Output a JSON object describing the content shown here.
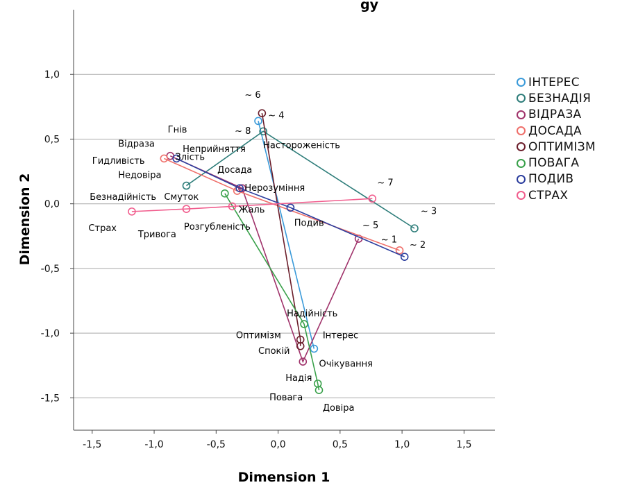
{
  "chart_data": {
    "type": "line",
    "title_fragment": "gy",
    "xlabel": "Dimension 1",
    "ylabel": "Dimension 2",
    "xlim": [
      -1.65,
      1.75
    ],
    "ylim": [
      -1.75,
      1.5
    ],
    "x_ticks": [
      {
        "v": -1.5,
        "label": "-1,5"
      },
      {
        "v": -1.0,
        "label": "-1,0"
      },
      {
        "v": -0.5,
        "label": "-0,5"
      },
      {
        "v": 0.0,
        "label": "0,0"
      },
      {
        "v": 0.5,
        "label": "0,5"
      },
      {
        "v": 1.0,
        "label": "1,0"
      },
      {
        "v": 1.5,
        "label": "1,5"
      }
    ],
    "y_ticks": [
      {
        "v": 1.0,
        "label": "1,0"
      },
      {
        "v": 0.5,
        "label": "0,5"
      },
      {
        "v": 0.0,
        "label": "0,0"
      },
      {
        "v": -0.5,
        "label": "-0,5"
      },
      {
        "v": -1.0,
        "label": "-1,0"
      },
      {
        "v": -1.5,
        "label": "-1,5"
      }
    ],
    "grid": "horizontal",
    "legend_position": "right",
    "series": [
      {
        "name": "ІНТЕРЕС",
        "color": "#3a9ad9",
        "points": [
          [
            -0.16,
            0.64
          ],
          [
            0.29,
            -1.12
          ]
        ]
      },
      {
        "name": "БЕЗНАДІЯ",
        "color": "#2e7d7a",
        "points": [
          [
            -0.74,
            0.14
          ],
          [
            -0.12,
            0.56
          ],
          [
            1.1,
            -0.19
          ]
        ]
      },
      {
        "name": "ВІДРАЗА",
        "color": "#a0336b",
        "points": [
          [
            -0.87,
            0.37
          ],
          [
            -0.29,
            0.12
          ],
          [
            0.2,
            -1.22
          ],
          [
            0.65,
            -0.27
          ]
        ]
      },
      {
        "name": "ДОСАДА",
        "color": "#ef6f6a",
        "points": [
          [
            -0.92,
            0.35
          ],
          [
            -0.33,
            0.1
          ],
          [
            0.98,
            -0.36
          ]
        ]
      },
      {
        "name": "ОПТИМІЗМ",
        "color": "#6b1e2b",
        "points": [
          [
            -0.13,
            0.7
          ],
          [
            0.18,
            -1.05
          ],
          [
            0.18,
            -1.1
          ]
        ]
      },
      {
        "name": "ПОВАГА",
        "color": "#3aa14b",
        "points": [
          [
            -0.43,
            0.08
          ],
          [
            0.21,
            -0.93
          ],
          [
            0.32,
            -1.39
          ],
          [
            0.33,
            -1.44
          ]
        ]
      },
      {
        "name": "ПОДИВ",
        "color": "#2c3e9e",
        "points": [
          [
            -0.82,
            0.35
          ],
          [
            -0.31,
            0.12
          ],
          [
            0.1,
            -0.03
          ],
          [
            1.02,
            -0.41
          ]
        ]
      },
      {
        "name": "СТРАХ",
        "color": "#f15e8e",
        "points": [
          [
            -1.18,
            -0.06
          ],
          [
            -0.74,
            -0.04
          ],
          [
            -0.37,
            -0.02
          ],
          [
            0.76,
            0.04
          ]
        ]
      }
    ],
    "point_labels": [
      {
        "text": "~ 6",
        "x": -0.27,
        "y": 0.82,
        "anchor": "start"
      },
      {
        "text": "~ 4",
        "x": -0.08,
        "y": 0.66,
        "anchor": "start"
      },
      {
        "text": "~ 8",
        "x": -0.35,
        "y": 0.54,
        "anchor": "start"
      },
      {
        "text": "Гнів",
        "x": -0.89,
        "y": 0.55,
        "anchor": "start"
      },
      {
        "text": "Відраза",
        "x": -1.29,
        "y": 0.44,
        "anchor": "start"
      },
      {
        "text": "Неприйняття",
        "x": -0.77,
        "y": 0.4,
        "anchor": "start"
      },
      {
        "text": "Настороженість",
        "x": -0.12,
        "y": 0.43,
        "anchor": "start"
      },
      {
        "text": "Гидливість",
        "x": -1.5,
        "y": 0.31,
        "anchor": "start"
      },
      {
        "text": "Злість",
        "x": -0.83,
        "y": 0.34,
        "anchor": "start"
      },
      {
        "text": "Недовіра",
        "x": -1.29,
        "y": 0.2,
        "anchor": "start"
      },
      {
        "text": "Досада",
        "x": -0.49,
        "y": 0.24,
        "anchor": "start"
      },
      {
        "text": "Безнадійність",
        "x": -1.52,
        "y": 0.03,
        "anchor": "start"
      },
      {
        "text": "Смуток",
        "x": -0.92,
        "y": 0.03,
        "anchor": "start"
      },
      {
        "text": "Нерозуміння",
        "x": -0.27,
        "y": 0.1,
        "anchor": "start"
      },
      {
        "text": "~ 7",
        "x": 0.8,
        "y": 0.14,
        "anchor": "start"
      },
      {
        "text": "Жаль",
        "x": -0.32,
        "y": -0.07,
        "anchor": "start"
      },
      {
        "text": "~ 3",
        "x": 1.15,
        "y": -0.08,
        "anchor": "start"
      },
      {
        "text": "Страх",
        "x": -1.53,
        "y": -0.21,
        "anchor": "start"
      },
      {
        "text": "Тривога",
        "x": -1.13,
        "y": -0.26,
        "anchor": "start"
      },
      {
        "text": "Розгубленість",
        "x": -0.76,
        "y": -0.2,
        "anchor": "start"
      },
      {
        "text": "Подив",
        "x": 0.13,
        "y": -0.17,
        "anchor": "start"
      },
      {
        "text": "~ 5",
        "x": 0.68,
        "y": -0.19,
        "anchor": "start"
      },
      {
        "text": "~ 1",
        "x": 0.83,
        "y": -0.3,
        "anchor": "start"
      },
      {
        "text": "~ 2",
        "x": 1.06,
        "y": -0.34,
        "anchor": "start"
      },
      {
        "text": "Надійність",
        "x": 0.07,
        "y": -0.87,
        "anchor": "start"
      },
      {
        "text": "Оптимізм",
        "x": -0.34,
        "y": -1.04,
        "anchor": "start"
      },
      {
        "text": "Інтерес",
        "x": 0.36,
        "y": -1.04,
        "anchor": "start"
      },
      {
        "text": "Спокій",
        "x": -0.16,
        "y": -1.16,
        "anchor": "start"
      },
      {
        "text": "Очікування",
        "x": 0.33,
        "y": -1.26,
        "anchor": "start"
      },
      {
        "text": "Надія",
        "x": 0.06,
        "y": -1.37,
        "anchor": "start"
      },
      {
        "text": "Повага",
        "x": -0.07,
        "y": -1.52,
        "anchor": "start"
      },
      {
        "text": "Довіра",
        "x": 0.36,
        "y": -1.6,
        "anchor": "start"
      }
    ]
  }
}
